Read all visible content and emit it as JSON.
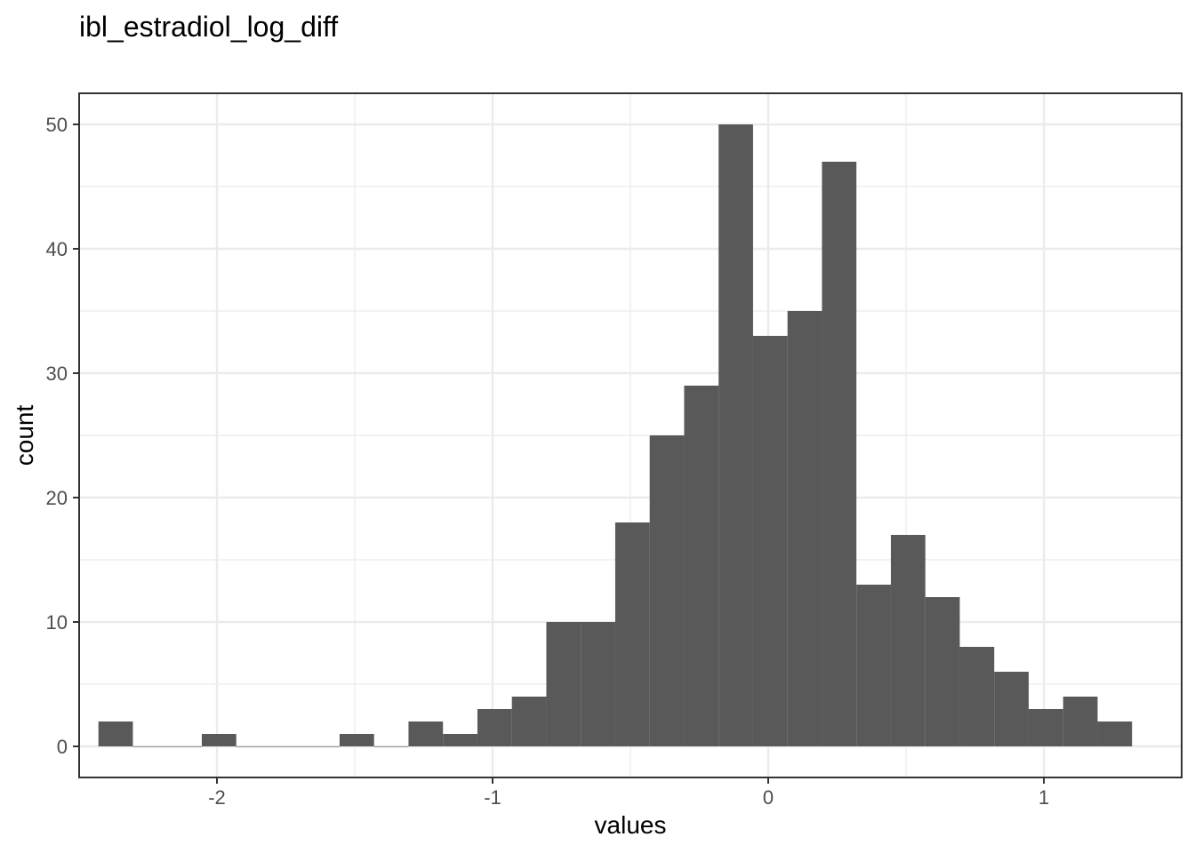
{
  "chart_data": {
    "type": "bar",
    "title": "ibl_estradiol_log_diff",
    "xlabel": "values",
    "ylabel": "count",
    "xlim": [
      -2.5,
      1.5
    ],
    "ylim": [
      -2.5,
      52.5
    ],
    "x_ticks": [
      -2,
      -1,
      0,
      1
    ],
    "x_tick_labels": [
      "-2",
      "-1",
      "0",
      "1"
    ],
    "y_ticks": [
      0,
      10,
      20,
      30,
      40,
      50
    ],
    "y_tick_labels": [
      "0",
      "10",
      "20",
      "30",
      "40",
      "50"
    ],
    "grid": true,
    "bar_color": "#595959",
    "bins": [
      {
        "x0": -2.43,
        "x1": -2.305,
        "count": 2
      },
      {
        "x0": -2.305,
        "x1": -2.18,
        "count": 0
      },
      {
        "x0": -2.18,
        "x1": -2.055,
        "count": 0
      },
      {
        "x0": -2.055,
        "x1": -1.93,
        "count": 1
      },
      {
        "x0": -1.93,
        "x1": -1.805,
        "count": 0
      },
      {
        "x0": -1.805,
        "x1": -1.68,
        "count": 0
      },
      {
        "x0": -1.68,
        "x1": -1.555,
        "count": 0
      },
      {
        "x0": -1.555,
        "x1": -1.43,
        "count": 1
      },
      {
        "x0": -1.43,
        "x1": -1.305,
        "count": 0
      },
      {
        "x0": -1.305,
        "x1": -1.18,
        "count": 2
      },
      {
        "x0": -1.18,
        "x1": -1.055,
        "count": 1
      },
      {
        "x0": -1.055,
        "x1": -0.93,
        "count": 3
      },
      {
        "x0": -0.93,
        "x1": -0.805,
        "count": 4
      },
      {
        "x0": -0.805,
        "x1": -0.68,
        "count": 10
      },
      {
        "x0": -0.68,
        "x1": -0.555,
        "count": 10
      },
      {
        "x0": -0.555,
        "x1": -0.43,
        "count": 18
      },
      {
        "x0": -0.43,
        "x1": -0.305,
        "count": 25
      },
      {
        "x0": -0.305,
        "x1": -0.18,
        "count": 29
      },
      {
        "x0": -0.18,
        "x1": -0.055,
        "count": 50
      },
      {
        "x0": -0.055,
        "x1": 0.07,
        "count": 33
      },
      {
        "x0": 0.07,
        "x1": 0.195,
        "count": 35
      },
      {
        "x0": 0.195,
        "x1": 0.32,
        "count": 47
      },
      {
        "x0": 0.32,
        "x1": 0.445,
        "count": 13
      },
      {
        "x0": 0.445,
        "x1": 0.57,
        "count": 17
      },
      {
        "x0": 0.57,
        "x1": 0.695,
        "count": 12
      },
      {
        "x0": 0.695,
        "x1": 0.82,
        "count": 8
      },
      {
        "x0": 0.82,
        "x1": 0.945,
        "count": 6
      },
      {
        "x0": 0.945,
        "x1": 1.07,
        "count": 3
      },
      {
        "x0": 1.07,
        "x1": 1.195,
        "count": 4
      },
      {
        "x0": 1.195,
        "x1": 1.32,
        "count": 2
      }
    ]
  }
}
